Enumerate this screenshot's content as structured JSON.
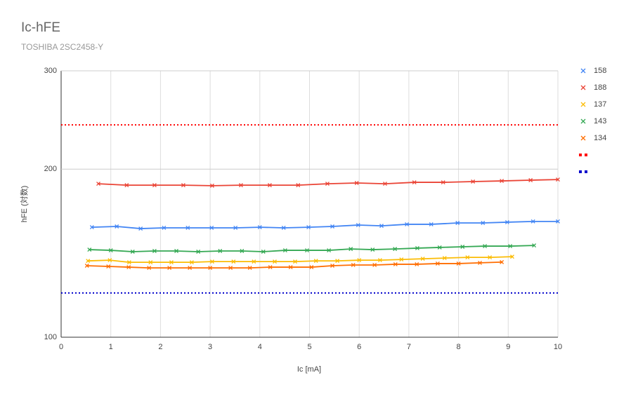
{
  "chart_data": {
    "type": "line",
    "title": "Ic-hFE",
    "subtitle": "TOSHIBA 2SC2458-Y",
    "x_label": "Ic [mA]",
    "y_label": "hFE (対数)",
    "xlim": [
      0,
      10
    ],
    "xticks": [
      0,
      1,
      2,
      3,
      4,
      5,
      6,
      7,
      8,
      9,
      10
    ],
    "ylim": [
      100,
      300
    ],
    "yticks": [
      100,
      200,
      300
    ],
    "log_y": true,
    "grid": true,
    "legend": "right",
    "series": [
      {
        "name": "158",
        "color": "#4285f4",
        "marker": true,
        "dash": false,
        "x": [
          0.62,
          1.12,
          1.6,
          2.07,
          2.55,
          3.03,
          3.51,
          4.0,
          4.48,
          4.98,
          5.46,
          5.98,
          6.45,
          6.96,
          7.45,
          7.98,
          8.49,
          8.98,
          9.5,
          10
        ],
        "values": [
          157.4,
          157.9,
          156.5,
          157,
          157,
          157,
          157,
          157.4,
          157,
          157.4,
          157.9,
          158.8,
          158.3,
          159.3,
          159.3,
          160.2,
          160.2,
          160.7,
          161.2,
          161.2
        ]
      },
      {
        "name": "188",
        "color": "#ea4335",
        "marker": true,
        "dash": false,
        "x": [
          0.75,
          1.32,
          1.88,
          2.46,
          3.04,
          3.62,
          4.2,
          4.77,
          5.36,
          5.95,
          6.52,
          7.11,
          7.69,
          8.29,
          8.87,
          9.45,
          10
        ],
        "values": [
          188.3,
          187.2,
          187.2,
          187.2,
          186.8,
          187.2,
          187.2,
          187.2,
          188.3,
          188.9,
          188.3,
          189.4,
          189.4,
          190,
          190.5,
          191.1,
          191.6
        ]
      },
      {
        "name": "137",
        "color": "#fbbc04",
        "marker": true,
        "dash": false,
        "x": [
          0.54,
          0.98,
          1.37,
          1.8,
          2.22,
          2.63,
          3.04,
          3.47,
          3.88,
          4.3,
          4.71,
          5.13,
          5.56,
          6.0,
          6.42,
          6.85,
          7.28,
          7.72,
          8.18,
          8.63,
          9.08
        ],
        "values": [
          137,
          137.4,
          136.2,
          136.2,
          136.2,
          136.2,
          136.6,
          136.6,
          136.6,
          136.6,
          136.6,
          137,
          137,
          137.4,
          137.4,
          137.8,
          138.2,
          138.6,
          139,
          139,
          139.4
        ]
      },
      {
        "name": "143",
        "color": "#34a853",
        "marker": true,
        "dash": false,
        "x": [
          0.57,
          1.0,
          1.44,
          1.88,
          2.32,
          2.76,
          3.2,
          3.64,
          4.07,
          4.51,
          4.95,
          5.39,
          5.83,
          6.27,
          6.72,
          7.17,
          7.62,
          8.08,
          8.53,
          9.04,
          9.52
        ],
        "values": [
          143.5,
          143.1,
          142.3,
          142.7,
          142.7,
          142.3,
          142.7,
          142.7,
          142.3,
          143.1,
          143.1,
          143.1,
          143.9,
          143.5,
          143.9,
          144.4,
          144.8,
          145.2,
          145.6,
          145.6,
          146
        ]
      },
      {
        "name": "134",
        "color": "#ff6d01",
        "marker": true,
        "dash": false,
        "x": [
          0.52,
          0.95,
          1.36,
          1.77,
          2.18,
          2.59,
          3.0,
          3.41,
          3.8,
          4.21,
          4.62,
          5.04,
          5.46,
          5.88,
          6.31,
          6.73,
          7.16,
          7.58,
          8.0,
          8.43,
          8.87
        ],
        "values": [
          134.3,
          133.9,
          133.5,
          133.1,
          133.1,
          133.1,
          133.1,
          133.1,
          133.1,
          133.5,
          133.5,
          133.5,
          134.3,
          134.7,
          134.7,
          135.1,
          135.1,
          135.5,
          135.5,
          135.9,
          136.3
        ]
      },
      {
        "name": null,
        "color": "#ff0000",
        "marker": false,
        "dash": true,
        "x": [
          0,
          10
        ],
        "values": [
          240,
          240
        ]
      },
      {
        "name": null,
        "color": "#0000cc",
        "marker": false,
        "dash": true,
        "x": [
          0,
          10
        ],
        "values": [
          120,
          120
        ]
      }
    ]
  }
}
